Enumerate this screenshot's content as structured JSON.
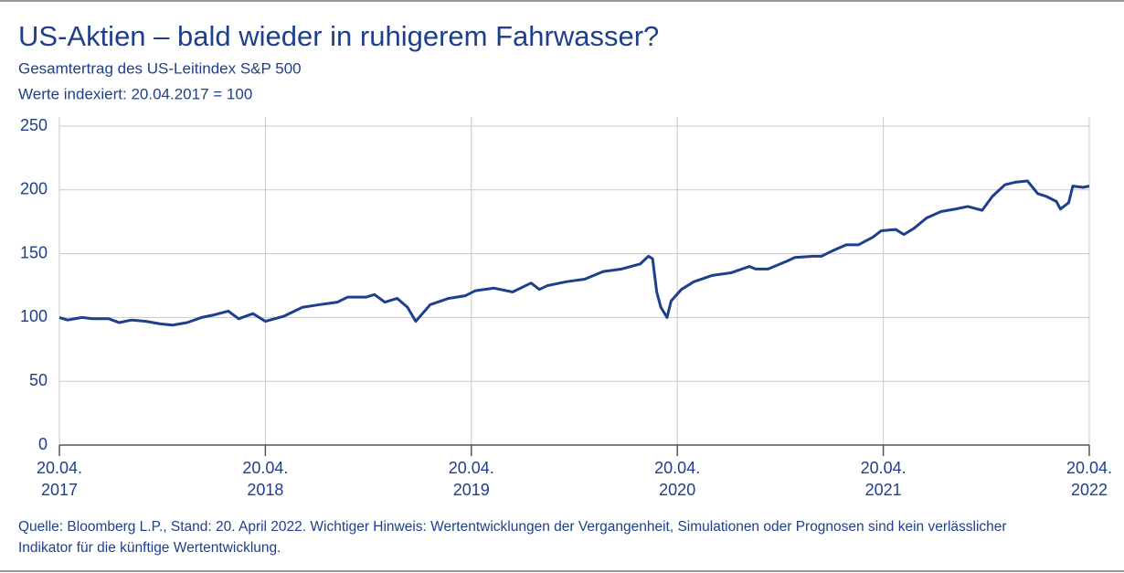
{
  "chart_data": {
    "type": "line",
    "title": "US-Aktien – bald wieder in ruhigerem Fahrwasser?",
    "subtitle": [
      "Gesamtertrag des US-Leitindex S&P 500",
      "Werte indexiert: 20.04.2017 = 100"
    ],
    "source": "Quelle: Bloomberg L.P., Stand: 20. April 2022. Wichtiger Hinweis: Wertentwicklungen der Vergangenheit, Simulationen oder Prognosen sind kein verlässlicher Indikator für die künftige Wertentwicklung.",
    "x": [
      2017.0,
      2017.04,
      2017.11,
      2017.16,
      2017.24,
      2017.29,
      2017.35,
      2017.42,
      2017.49,
      2017.55,
      2017.62,
      2017.69,
      2017.75,
      2017.82,
      2017.87,
      2017.94,
      2018.0,
      2018.09,
      2018.18,
      2018.26,
      2018.35,
      2018.4,
      2018.49,
      2018.53,
      2018.58,
      2018.64,
      2018.69,
      2018.73,
      2018.8,
      2018.89,
      2018.97,
      2019.02,
      2019.11,
      2019.2,
      2019.29,
      2019.33,
      2019.37,
      2019.46,
      2019.55,
      2019.64,
      2019.73,
      2019.82,
      2019.86,
      2019.88,
      2019.9,
      2019.92,
      2019.95,
      2019.97,
      2020.02,
      2020.08,
      2020.17,
      2020.26,
      2020.35,
      2020.38,
      2020.44,
      2020.53,
      2020.57,
      2020.66,
      2020.7,
      2020.75,
      2020.82,
      2020.88,
      2020.95,
      2020.99,
      2021.06,
      2021.1,
      2021.15,
      2021.21,
      2021.28,
      2021.35,
      2021.41,
      2021.48,
      2021.53,
      2021.59,
      2021.64,
      2021.7,
      2021.75,
      2021.79,
      2021.84,
      2021.86,
      2021.9,
      2021.92,
      2021.97,
      2022.0
    ],
    "series": [
      {
        "name": "S&P 500",
        "color": "#1e3f8c",
        "values": [
          100,
          98,
          100,
          99,
          99,
          96,
          98,
          97,
          95,
          94,
          96,
          100,
          102,
          105,
          99,
          103,
          97,
          101,
          108,
          110,
          112,
          116,
          116,
          118,
          112,
          115,
          108,
          97,
          110,
          115,
          117,
          121,
          123,
          120,
          127,
          122,
          125,
          128,
          130,
          136,
          138,
          142,
          148,
          146,
          120,
          108,
          100,
          113,
          122,
          128,
          133,
          135,
          140,
          138,
          138,
          144,
          147,
          148,
          148,
          152,
          157,
          157,
          163,
          168,
          169,
          165,
          170,
          178,
          183,
          185,
          187,
          184,
          195,
          204,
          206,
          207,
          197,
          195,
          191,
          185,
          190,
          203,
          202,
          203
        ]
      }
    ],
    "xlim": [
      2017,
      2022
    ],
    "xticks": [
      {
        "value": 2017,
        "label": "20.04. 2017"
      },
      {
        "value": 2018,
        "label": "20.04. 2018"
      },
      {
        "value": 2019,
        "label": "20.04. 2019"
      },
      {
        "value": 2020,
        "label": "20.04. 2020"
      },
      {
        "value": 2021,
        "label": "20.04. 2021"
      },
      {
        "value": 2022,
        "label": "20.04. 2022"
      }
    ],
    "ylim": [
      0,
      250
    ],
    "yticks": [
      0,
      50,
      100,
      150,
      200,
      250
    ],
    "grid": true
  }
}
